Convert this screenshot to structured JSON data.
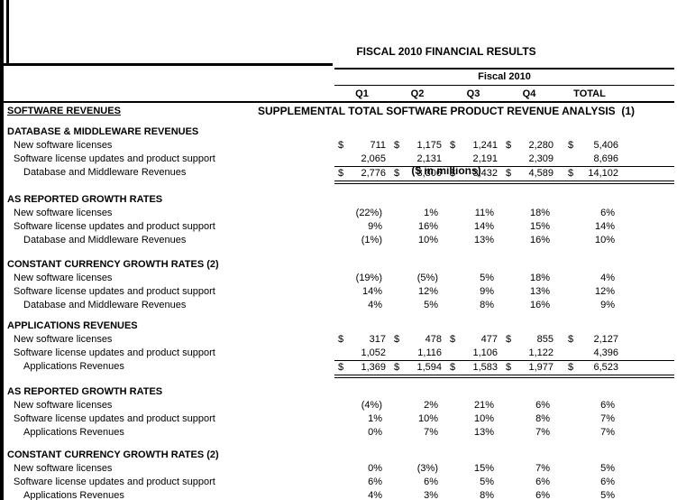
{
  "titles": {
    "line1": "FISCAL 2010 FINANCIAL RESULTS",
    "line2": "SUPPLEMENTAL TOTAL SOFTWARE PRODUCT REVENUE ANALYSIS  (1)",
    "line3": "($ in millions)"
  },
  "table": {
    "group_header": "Fiscal 2010",
    "columns": [
      "Q1",
      "Q2",
      "Q3",
      "Q4",
      "TOTAL"
    ],
    "currency": "$",
    "software_revenues_heading": "SOFTWARE REVENUES",
    "sections": [
      {
        "heading": "DATABASE & MIDDLEWARE REVENUES",
        "rows": [
          {
            "label": "New software licenses",
            "values": [
              "711",
              "1,175",
              "1,241",
              "2,280",
              "5,406"
            ]
          },
          {
            "label": "Software license updates and product support",
            "values": [
              "2,065",
              "2,131",
              "2,191",
              "2,309",
              "8,696"
            ]
          },
          {
            "label": "Database and Middleware Revenues",
            "values": [
              "2,776",
              "3,306",
              "3,432",
              "4,589",
              "14,102"
            ]
          }
        ]
      },
      {
        "heading": "AS REPORTED GROWTH RATES",
        "rows": [
          {
            "label": "New software licenses",
            "values": [
              "(22%)",
              "1%",
              "11%",
              "18%",
              "6%"
            ]
          },
          {
            "label": "Software license updates and product support",
            "values": [
              "9%",
              "16%",
              "14%",
              "15%",
              "14%"
            ]
          },
          {
            "label": "Database and Middleware Revenues",
            "values": [
              "(1%)",
              "10%",
              "13%",
              "16%",
              "10%"
            ]
          }
        ]
      },
      {
        "heading": "CONSTANT CURRENCY GROWTH RATES (2)",
        "rows": [
          {
            "label": "New software licenses",
            "values": [
              "(19%)",
              "(5%)",
              "5%",
              "18%",
              "4%"
            ]
          },
          {
            "label": "Software license updates and product support",
            "values": [
              "14%",
              "12%",
              "9%",
              "13%",
              "12%"
            ]
          },
          {
            "label": "Database and Middleware Revenues",
            "values": [
              "4%",
              "5%",
              "8%",
              "16%",
              "9%"
            ]
          }
        ]
      },
      {
        "heading": "APPLICATIONS REVENUES",
        "rows": [
          {
            "label": "New software licenses",
            "values": [
              "317",
              "478",
              "477",
              "855",
              "2,127"
            ]
          },
          {
            "label": "Software license updates and product support",
            "values": [
              "1,052",
              "1,116",
              "1,106",
              "1,122",
              "4,396"
            ]
          },
          {
            "label": "Applications Revenues",
            "values": [
              "1,369",
              "1,594",
              "1,583",
              "1,977",
              "6,523"
            ]
          }
        ]
      },
      {
        "heading": "AS REPORTED GROWTH RATES",
        "rows": [
          {
            "label": "New software licenses",
            "values": [
              "(4%)",
              "2%",
              "21%",
              "6%",
              "6%"
            ]
          },
          {
            "label": "Software license updates and product support",
            "values": [
              "1%",
              "10%",
              "10%",
              "8%",
              "7%"
            ]
          },
          {
            "label": "Applications Revenues",
            "values": [
              "0%",
              "7%",
              "13%",
              "7%",
              "7%"
            ]
          }
        ]
      },
      {
        "heading": "CONSTANT CURRENCY GROWTH RATES (2)",
        "rows": [
          {
            "label": "New software licenses",
            "values": [
              "0%",
              "(3%)",
              "15%",
              "7%",
              "5%"
            ]
          },
          {
            "label": "Software license updates and product support",
            "values": [
              "6%",
              "6%",
              "5%",
              "6%",
              "6%"
            ]
          },
          {
            "label": "Applications Revenues",
            "values": [
              "4%",
              "3%",
              "8%",
              "6%",
              "5%"
            ]
          }
        ]
      }
    ]
  }
}
